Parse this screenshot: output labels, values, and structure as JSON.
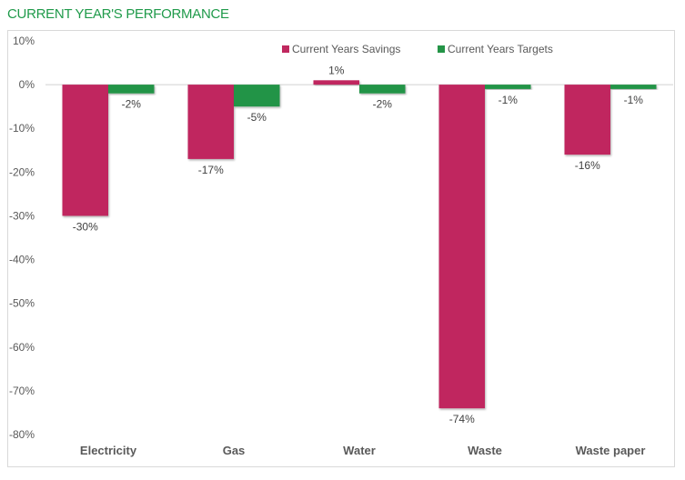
{
  "title": "CURRENT YEAR'S PERFORMANCE",
  "chart_data": {
    "type": "bar",
    "title": "CURRENT YEAR'S PERFORMANCE",
    "xlabel": "",
    "ylabel": "",
    "categories": [
      "Electricity",
      "Gas",
      "Water",
      "Waste",
      "Waste paper"
    ],
    "series": [
      {
        "name": "Current Years Savings",
        "color": "#c0285f",
        "values": [
          -30,
          -17,
          1,
          -74,
          -16
        ],
        "labels": [
          "-30%",
          "-17%",
          "1%",
          "-74%",
          "-16%"
        ]
      },
      {
        "name": "Current Years Targets",
        "color": "#249447",
        "values": [
          -2,
          -5,
          -2,
          -1,
          -1
        ],
        "labels": [
          "-2%",
          "-5%",
          "-2%",
          "-1%",
          "-1%"
        ]
      }
    ],
    "ylim": [
      -80,
      10
    ],
    "yticks": [
      10,
      0,
      -10,
      -20,
      -30,
      -40,
      -50,
      -60,
      -70,
      -80
    ],
    "ytick_labels": [
      "10%",
      "0%",
      "-10%",
      "-20%",
      "-30%",
      "-40%",
      "-50%",
      "-60%",
      "-70%",
      "-80%"
    ],
    "grid": false,
    "legend_position": "top-center"
  }
}
